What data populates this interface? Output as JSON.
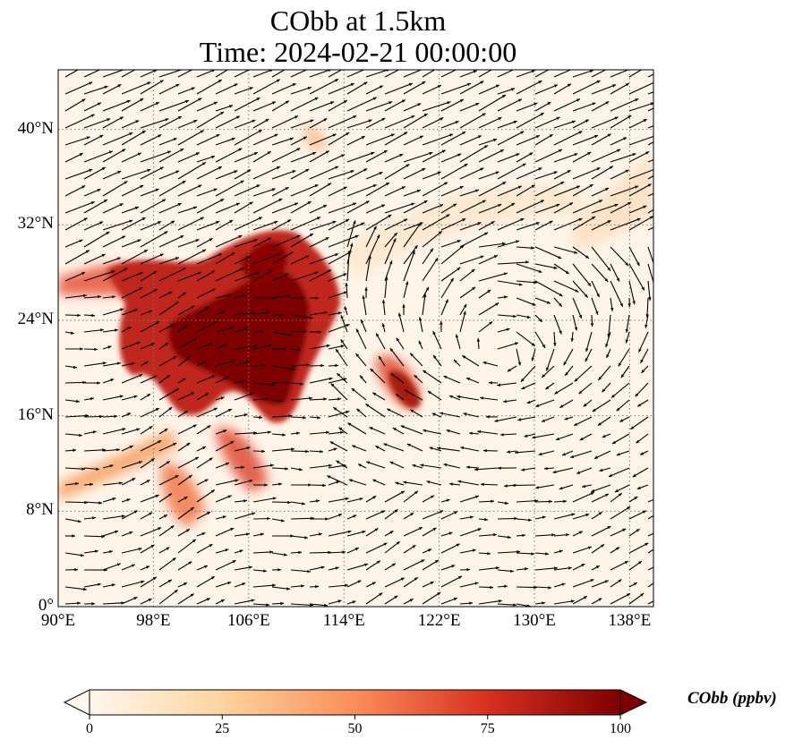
{
  "title_line1": "CObb at 1.5km",
  "title_line2": "Time: 2024-02-21 00:00:00",
  "map": {
    "lon_range": [
      90,
      140
    ],
    "lat_range": [
      0,
      45
    ],
    "lat_ticks": [
      {
        "value": 40,
        "label": "40°N"
      },
      {
        "value": 32,
        "label": "32°N"
      },
      {
        "value": 24,
        "label": "24°N"
      },
      {
        "value": 16,
        "label": "16°N"
      },
      {
        "value": 8,
        "label": "8°N"
      },
      {
        "value": 0,
        "label": "0°"
      }
    ],
    "lon_ticks": [
      {
        "value": 90,
        "label": "90°E"
      },
      {
        "value": 98,
        "label": "98°E"
      },
      {
        "value": 106,
        "label": "106°E"
      },
      {
        "value": 114,
        "label": "114°E"
      },
      {
        "value": 122,
        "label": "122°E"
      },
      {
        "value": 130,
        "label": "130°E"
      },
      {
        "value": 138,
        "label": "138°E"
      }
    ],
    "gridlines": true,
    "background_color": "#fff4e8",
    "wind_vectors": true
  },
  "colorbar": {
    "label": "CObb (ppbv)",
    "min": 0,
    "max": 100,
    "extend": "both",
    "colormap": "OrRd",
    "ticks": [
      {
        "value": 0,
        "label": "0"
      },
      {
        "value": 25,
        "label": "25"
      },
      {
        "value": 50,
        "label": "50"
      },
      {
        "value": 75,
        "label": "75"
      },
      {
        "value": 100,
        "label": "100"
      }
    ]
  }
}
